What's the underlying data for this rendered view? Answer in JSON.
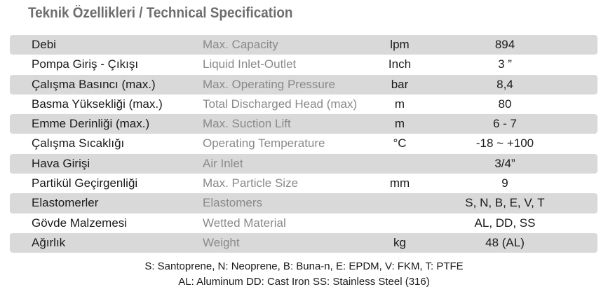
{
  "title": "Teknik Özellikleri / Technical Specification",
  "table": {
    "rows": [
      {
        "tr": "Debi",
        "en": "Max. Capacity",
        "unit": "lpm",
        "value": "894"
      },
      {
        "tr": "Pompa Giriş - Çıkışı",
        "en": "Liquid Inlet-Outlet",
        "unit": "Inch",
        "value": "3 ”"
      },
      {
        "tr": "Çalışma Basıncı (max.)",
        "en": "Max. Operating Pressure",
        "unit": "bar",
        "value": "8,4"
      },
      {
        "tr": "Basma Yüksekliği (max.)",
        "en": "Total Discharged Head (max)",
        "unit": "m",
        "value": "80"
      },
      {
        "tr": "Emme Derinliği (max.)",
        "en": "Max. Suction Lift",
        "unit": "m",
        "value": "6 - 7"
      },
      {
        "tr": "Çalışma Sıcaklığı",
        "en": "Operating Temperature",
        "unit": "°C",
        "value": "-18 ~ +100"
      },
      {
        "tr": "Hava Girişi",
        "en": "Air Inlet",
        "value": "3/4”"
      },
      {
        "tr": "Partikül Geçirgenliği",
        "en": "Max. Particle Size",
        "unit": "mm",
        "value": "9"
      },
      {
        "tr": "Elastomerler",
        "en": "Elastomers",
        "value": "S, N, B, E, V, T"
      },
      {
        "tr": "Gövde Malzemesi",
        "en": "Wetted Material",
        "value": "AL, DD, SS"
      },
      {
        "tr": "Ağırlık",
        "en": "Weight",
        "unit": "kg",
        "value": "48 (AL)"
      }
    ]
  },
  "footnotes": [
    "S: Santoprene, N: Neoprene, B: Buna-n, E: EPDM, V: FKM, T: PTFE",
    "AL: Aluminum  DD: Cast Iron  SS: Stainless Steel (316)"
  ]
}
